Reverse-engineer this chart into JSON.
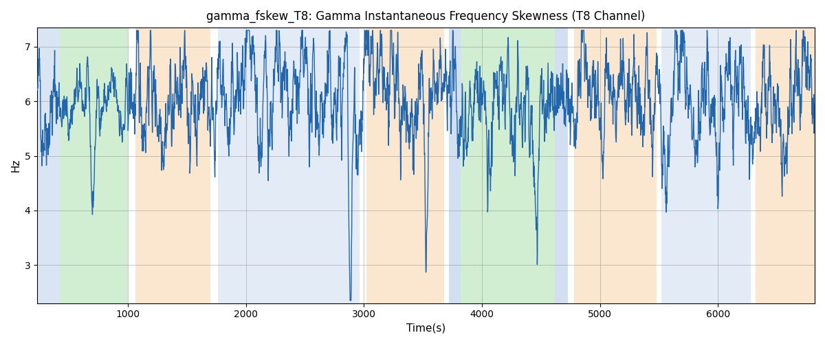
{
  "title": "gamma_fskew_T8: Gamma Instantaneous Frequency Skewness (T8 Channel)",
  "xlabel": "Time(s)",
  "ylabel": "Hz",
  "xlim": [
    230,
    6820
  ],
  "ylim": [
    2.3,
    7.35
  ],
  "yticks": [
    3,
    4,
    5,
    6,
    7
  ],
  "xticks": [
    1000,
    2000,
    3000,
    4000,
    5000,
    6000
  ],
  "line_color": "#2166ac",
  "line_width": 1.0,
  "background_regions": [
    {
      "xmin": 230,
      "xmax": 420,
      "color": "#aec6e8",
      "alpha": 0.45
    },
    {
      "xmin": 420,
      "xmax": 1000,
      "color": "#90d590",
      "alpha": 0.4
    },
    {
      "xmin": 1060,
      "xmax": 1700,
      "color": "#f5c18a",
      "alpha": 0.4
    },
    {
      "xmin": 1760,
      "xmax": 2960,
      "color": "#aec6e8",
      "alpha": 0.35
    },
    {
      "xmin": 3020,
      "xmax": 3680,
      "color": "#f5c18a",
      "alpha": 0.4
    },
    {
      "xmin": 3720,
      "xmax": 3820,
      "color": "#aec6e8",
      "alpha": 0.55
    },
    {
      "xmin": 3820,
      "xmax": 4620,
      "color": "#90d590",
      "alpha": 0.4
    },
    {
      "xmin": 4620,
      "xmax": 4730,
      "color": "#aec6e8",
      "alpha": 0.55
    },
    {
      "xmin": 4780,
      "xmax": 5480,
      "color": "#f5c18a",
      "alpha": 0.4
    },
    {
      "xmin": 5520,
      "xmax": 6280,
      "color": "#aec6e8",
      "alpha": 0.35
    },
    {
      "xmin": 6320,
      "xmax": 6820,
      "color": "#f5c18a",
      "alpha": 0.4
    }
  ],
  "figsize": [
    12,
    5
  ],
  "dpi": 100
}
